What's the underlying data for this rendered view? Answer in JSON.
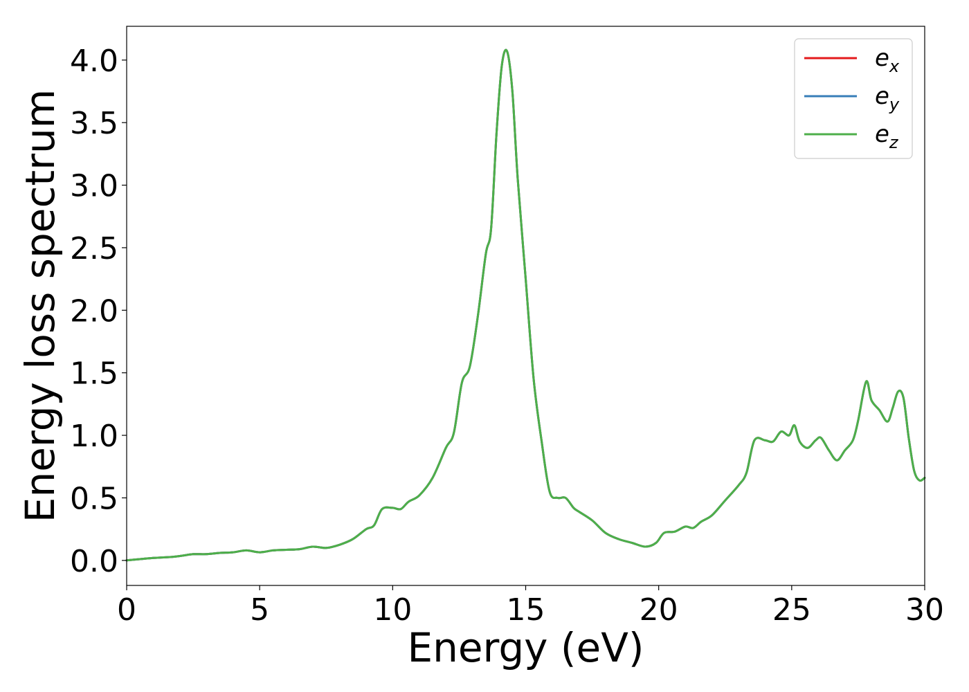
{
  "chart_data": {
    "type": "line",
    "title": "",
    "xlabel": "Energy (eV)",
    "ylabel": "Energy loss spectrum",
    "xlim": [
      0,
      30
    ],
    "ylim": [
      -0.2,
      4.27
    ],
    "xticks": [
      0,
      5,
      10,
      15,
      20,
      25,
      30
    ],
    "xtick_labels": [
      "0",
      "5",
      "10",
      "15",
      "20",
      "25",
      "30"
    ],
    "yticks": [
      0.0,
      0.5,
      1.0,
      1.5,
      2.0,
      2.5,
      3.0,
      3.5,
      4.0
    ],
    "ytick_labels": [
      "0.0",
      "0.5",
      "1.0",
      "1.5",
      "2.0",
      "2.5",
      "3.0",
      "3.5",
      "4.0"
    ],
    "grid": false,
    "legend_position": "top-right",
    "x": [
      0,
      0.5,
      1,
      1.5,
      2,
      2.5,
      3,
      3.5,
      4,
      4.5,
      5,
      5.5,
      6,
      6.5,
      7,
      7.5,
      8,
      8.5,
      9,
      9.3,
      9.6,
      10,
      10.3,
      10.6,
      11,
      11.5,
      12,
      12.3,
      12.6,
      12.9,
      13.2,
      13.5,
      13.7,
      13.9,
      14.1,
      14.3,
      14.5,
      14.7,
      15.0,
      15.3,
      15.6,
      15.9,
      16.2,
      16.5,
      16.8,
      17.0,
      17.5,
      18.0,
      18.5,
      19.0,
      19.5,
      19.9,
      20.2,
      20.6,
      21.0,
      21.3,
      21.6,
      22.0,
      22.5,
      23.0,
      23.3,
      23.6,
      24.0,
      24.3,
      24.6,
      24.9,
      25.1,
      25.3,
      25.6,
      25.9,
      26.1,
      26.4,
      26.7,
      27.0,
      27.3,
      27.5,
      27.8,
      28.0,
      28.3,
      28.6,
      28.8,
      29.0,
      29.2,
      29.4,
      29.6,
      29.8,
      30.0
    ],
    "series": [
      {
        "name": "x",
        "color": "#e41a1c",
        "values": [
          0.0,
          0.01,
          0.02,
          0.025,
          0.035,
          0.05,
          0.05,
          0.06,
          0.065,
          0.08,
          0.065,
          0.08,
          0.085,
          0.09,
          0.11,
          0.1,
          0.125,
          0.17,
          0.25,
          0.28,
          0.41,
          0.42,
          0.41,
          0.47,
          0.52,
          0.66,
          0.9,
          1.02,
          1.42,
          1.55,
          1.95,
          2.45,
          2.65,
          3.4,
          3.95,
          4.07,
          3.75,
          3.05,
          2.25,
          1.45,
          0.95,
          0.55,
          0.5,
          0.5,
          0.42,
          0.39,
          0.32,
          0.22,
          0.17,
          0.14,
          0.11,
          0.14,
          0.22,
          0.23,
          0.27,
          0.26,
          0.31,
          0.36,
          0.48,
          0.6,
          0.7,
          0.96,
          0.96,
          0.95,
          1.03,
          1.0,
          1.08,
          0.95,
          0.9,
          0.96,
          0.98,
          0.88,
          0.8,
          0.88,
          0.96,
          1.12,
          1.43,
          1.28,
          1.2,
          1.11,
          1.22,
          1.35,
          1.3,
          0.98,
          0.72,
          0.64,
          0.66
        ]
      },
      {
        "name": "y",
        "color": "#377eb8",
        "values": [
          0.0,
          0.01,
          0.02,
          0.025,
          0.035,
          0.05,
          0.05,
          0.06,
          0.065,
          0.08,
          0.065,
          0.08,
          0.085,
          0.09,
          0.11,
          0.1,
          0.125,
          0.17,
          0.25,
          0.28,
          0.41,
          0.42,
          0.41,
          0.47,
          0.52,
          0.66,
          0.9,
          1.02,
          1.42,
          1.55,
          1.95,
          2.45,
          2.65,
          3.4,
          3.95,
          4.07,
          3.75,
          3.05,
          2.25,
          1.45,
          0.95,
          0.55,
          0.5,
          0.5,
          0.42,
          0.39,
          0.32,
          0.22,
          0.17,
          0.14,
          0.11,
          0.14,
          0.22,
          0.23,
          0.27,
          0.26,
          0.31,
          0.36,
          0.48,
          0.6,
          0.7,
          0.96,
          0.96,
          0.95,
          1.03,
          1.0,
          1.08,
          0.95,
          0.9,
          0.96,
          0.98,
          0.88,
          0.8,
          0.88,
          0.96,
          1.12,
          1.43,
          1.28,
          1.2,
          1.11,
          1.22,
          1.35,
          1.3,
          0.98,
          0.72,
          0.64,
          0.66
        ]
      },
      {
        "name": "z",
        "color": "#4daf4a",
        "values": [
          0.0,
          0.01,
          0.02,
          0.025,
          0.035,
          0.05,
          0.05,
          0.06,
          0.065,
          0.08,
          0.065,
          0.08,
          0.085,
          0.09,
          0.11,
          0.1,
          0.125,
          0.17,
          0.25,
          0.28,
          0.41,
          0.42,
          0.41,
          0.47,
          0.52,
          0.66,
          0.9,
          1.02,
          1.42,
          1.55,
          1.95,
          2.45,
          2.65,
          3.4,
          3.95,
          4.07,
          3.75,
          3.05,
          2.25,
          1.45,
          0.95,
          0.55,
          0.5,
          0.5,
          0.42,
          0.39,
          0.32,
          0.22,
          0.17,
          0.14,
          0.11,
          0.14,
          0.22,
          0.23,
          0.27,
          0.26,
          0.31,
          0.36,
          0.48,
          0.6,
          0.7,
          0.96,
          0.96,
          0.95,
          1.03,
          1.0,
          1.08,
          0.95,
          0.9,
          0.96,
          0.98,
          0.88,
          0.8,
          0.88,
          0.96,
          1.12,
          1.43,
          1.28,
          1.2,
          1.11,
          1.22,
          1.35,
          1.3,
          0.98,
          0.72,
          0.64,
          0.66
        ]
      }
    ],
    "legend_entries": [
      {
        "base": "e",
        "sub": "x"
      },
      {
        "base": "e",
        "sub": "y"
      },
      {
        "base": "e",
        "sub": "z"
      }
    ]
  }
}
